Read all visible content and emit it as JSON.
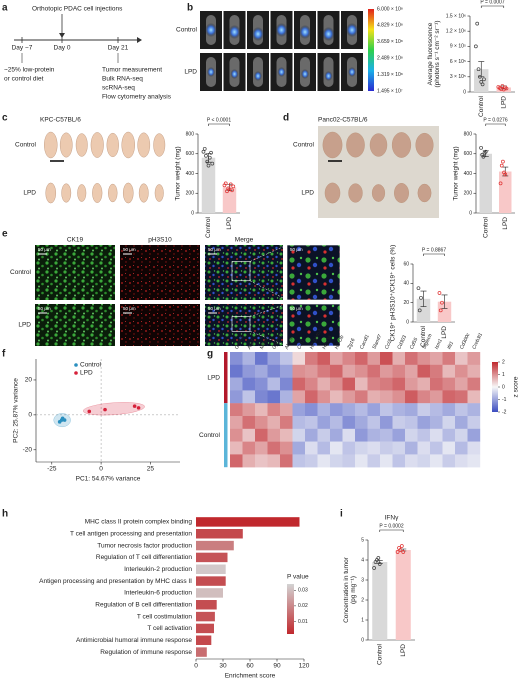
{
  "panel_letters": [
    "a",
    "b",
    "c",
    "d",
    "e",
    "f",
    "g",
    "h",
    "i"
  ],
  "diagram": {
    "injection": "Orthotopic PDAC cell injections",
    "days": [
      "Day −7",
      "Day 0",
      "Day 21"
    ],
    "diet": [
      "~25% low-protein",
      "or control diet"
    ],
    "readouts": [
      "Tumor measurement",
      "Bulk RNA-seq",
      "scRNA-seq",
      "Flow cytometry analysis"
    ]
  },
  "imaging": {
    "b": {
      "rows": [
        "Control",
        "LPD"
      ],
      "colorbar": [
        "6.000 × 10⁸",
        "4.829 × 10⁸",
        "3.659 × 10⁸",
        "2.489 × 10⁸",
        "1.319 × 10⁸",
        "1.495 × 10⁷"
      ]
    },
    "c": {
      "title": "KPC-C57BL/6",
      "rows": [
        "Control",
        "LPD"
      ]
    },
    "d": {
      "title": "Panc02-C57BL/6",
      "rows": [
        "Control",
        "LPD"
      ]
    },
    "e": {
      "columns": [
        "CK19",
        "pH3S10",
        "Merge"
      ],
      "rows": [
        "Control",
        "LPD"
      ],
      "scale": "50 μm"
    }
  },
  "chart_data": [
    {
      "type": "bar",
      "ylabel": [
        "Average fluorescence",
        "(photons s⁻¹ cm⁻² sr⁻¹)"
      ],
      "categories": [
        "Control",
        "LPD"
      ],
      "values": [
        450000,
        90000
      ],
      "errors": [
        150000,
        30000
      ],
      "points": [
        [
          900000,
          1350000,
          450000,
          300000,
          200000,
          150000,
          250000
        ],
        [
          100000,
          80000,
          60000,
          120000,
          50000,
          90000,
          70000
        ]
      ],
      "colors": [
        "#d9d9d9",
        "#f8c8c8"
      ],
      "point_colors": [
        "#404040",
        "#e03030"
      ],
      "annotation": "P = 0.0007",
      "ylim": [
        0,
        1500000
      ],
      "yticks": [
        0,
        {
          "value": 300000,
          "label": "3 × 10⁵"
        },
        {
          "value": 600000,
          "label": "6 × 10⁵"
        },
        {
          "value": 900000,
          "label": "9 × 10⁵"
        },
        {
          "value": 1200000,
          "label": "1.2 × 10⁶"
        },
        {
          "value": 1500000,
          "label": "1.5 × 10⁶"
        }
      ]
    },
    {
      "type": "bar",
      "ylabel": "Tumor weight (mg)",
      "categories": [
        "Control",
        "LPD"
      ],
      "values": [
        560,
        260
      ],
      "errors": [
        45,
        30
      ],
      "points": [
        [
          620,
          650,
          580,
          520,
          480,
          560,
          610,
          500
        ],
        [
          280,
          300,
          220,
          250,
          240,
          290,
          230,
          270
        ]
      ],
      "colors": [
        "#d9d9d9",
        "#f8c8c8"
      ],
      "point_colors": [
        "#404040",
        "#e03030"
      ],
      "annotation": "P < 0.0001",
      "ylim": [
        0,
        800
      ],
      "yticks": [
        0,
        200,
        400,
        600,
        800
      ]
    },
    {
      "type": "bar",
      "ylabel": "Tumor weight (mg)",
      "categories": [
        "Control",
        "LPD"
      ],
      "values": [
        600,
        420
      ],
      "errors": [
        30,
        45
      ],
      "points": [
        [
          660,
          590,
          570,
          610,
          620
        ],
        [
          300,
          480,
          520,
          410,
          390
        ]
      ],
      "colors": [
        "#d9d9d9",
        "#f8c8c8"
      ],
      "point_colors": [
        "#404040",
        "#e03030"
      ],
      "annotation": "P = 0.0276",
      "ylim": [
        0,
        800
      ],
      "yticks": [
        0,
        200,
        400,
        600,
        800
      ]
    },
    {
      "type": "bar",
      "ylabel": "CK19⁺ pH3S10⁺/CK19⁺ cells (%)",
      "categories": [
        "Control",
        "LPD"
      ],
      "values": [
        24,
        21
      ],
      "errors": [
        8,
        7
      ],
      "points": [
        [
          35,
          12,
          25
        ],
        [
          30,
          12,
          20
        ]
      ],
      "colors": [
        "#d9d9d9",
        "#f8c8c8"
      ],
      "point_colors": [
        "#404040",
        "#e03030"
      ],
      "annotation": "P = 0.8867",
      "ylim": [
        0,
        60
      ],
      "yticks": [
        0,
        20,
        40,
        60
      ]
    },
    {
      "type": "scatter",
      "xlabel": "PC1: 54.67% variance",
      "ylabel": "PC2: 25.87% variance",
      "series": [
        {
          "name": "Control",
          "color": "#2a8fbf",
          "x": [
            -20,
            -19.5,
            -21,
            -18.5
          ],
          "y": [
            -3,
            -2,
            -4,
            -3
          ]
        },
        {
          "name": "LPD",
          "color": "#d6213a",
          "x": [
            -6,
            2,
            17,
            19
          ],
          "y": [
            2,
            3,
            5,
            4
          ]
        }
      ],
      "xlim": [
        -33,
        40
      ],
      "ylim": [
        -27,
        32
      ],
      "xticks": [
        -25,
        0,
        25
      ],
      "yticks": [
        -20,
        0,
        20
      ]
    },
    {
      "type": "heatmap",
      "columns": [
        "Grem2",
        "Arg1",
        "Mmp2",
        "Gpnmb",
        "Alox5",
        "Clrl1",
        "H2-DMb2",
        "H2-Oa",
        "H2-Ob",
        "Zg16",
        "Cacdl1",
        "Slamf7",
        "Ccl2",
        "Cd303",
        "Cd55",
        "Siglech",
        "Ism1",
        "Ifit1",
        "Cd300c",
        "Creb3l1"
      ],
      "groups": [
        {
          "name": "LPD",
          "color": "#b2182b",
          "rows": [
            [
              -1.2,
              -0.8,
              -1.5,
              -1.0,
              -0.6,
              0.3,
              1.2,
              1.5,
              0.8,
              1.1,
              1.4,
              0.9,
              1.6,
              0.7,
              1.3,
              1.0,
              0.8,
              1.2,
              0.5,
              0.9
            ],
            [
              -1.5,
              -1.1,
              -0.9,
              -1.3,
              -1.0,
              1.0,
              0.9,
              1.2,
              1.4,
              0.8,
              1.0,
              1.3,
              0.9,
              1.1,
              0.8,
              1.5,
              1.2,
              0.6,
              1.0,
              0.7
            ],
            [
              -0.9,
              -1.4,
              -1.2,
              -0.7,
              -1.3,
              1.4,
              1.1,
              0.7,
              1.0,
              1.5,
              0.6,
              1.1,
              1.2,
              1.4,
              0.9,
              0.7,
              1.3,
              1.1,
              0.8,
              1.2
            ],
            [
              -1.1,
              -0.6,
              -1.3,
              -1.5,
              -0.8,
              0.8,
              1.4,
              1.0,
              0.6,
              0.9,
              1.2,
              0.7,
              0.8,
              1.0,
              1.5,
              1.1,
              0.9,
              1.4,
              1.3,
              0.6
            ]
          ]
        },
        {
          "name": "Control",
          "color": "#5bb5d9",
          "rows": [
            [
              1.2,
              0.9,
              0.6,
              1.1,
              0.8,
              -1.0,
              -1.2,
              -0.8,
              -1.1,
              -0.9,
              -0.7,
              -1.0,
              -0.6,
              -0.8,
              -0.9,
              -0.5,
              -0.7,
              -0.9,
              -0.6,
              -0.8
            ],
            [
              0.8,
              1.3,
              1.0,
              0.7,
              1.2,
              -0.7,
              -0.6,
              -1.0,
              -0.7,
              -1.2,
              -0.9,
              -0.6,
              -1.1,
              -0.5,
              -0.6,
              -1.0,
              -0.8,
              -0.4,
              -0.9,
              -0.5
            ],
            [
              1.0,
              0.5,
              1.4,
              0.9,
              0.6,
              -0.4,
              -0.9,
              -0.5,
              -0.9,
              -0.3,
              -1.1,
              -0.8,
              -0.7,
              -1.0,
              -0.4,
              -0.6,
              -0.3,
              -0.7,
              -0.4,
              -1.0
            ],
            [
              0.6,
              1.1,
              0.8,
              1.3,
              1.0,
              -0.9,
              -0.3,
              -0.7,
              -0.2,
              -0.6,
              -0.4,
              -0.3,
              -0.5,
              -0.4,
              -0.8,
              -0.3,
              -0.6,
              -0.2,
              -0.7,
              -0.3
            ],
            [
              1.4,
              0.7,
              0.5,
              0.6,
              1.3,
              -0.6,
              -0.5,
              -0.2,
              -0.4,
              -0.5,
              -0.2,
              -0.5,
              -0.2,
              -0.6,
              -0.3,
              -0.4,
              -0.2,
              -0.5,
              -0.3,
              -0.2
            ]
          ]
        }
      ],
      "zlim": [
        -2,
        2
      ],
      "zticks": [
        2,
        1,
        0,
        -1,
        -2
      ],
      "zlabel": "z score",
      "z_colors": [
        "#3b4cc0",
        "#f7f7f7",
        "#c0282d"
      ]
    },
    {
      "type": "hbar",
      "xlabel": "Enrichment score",
      "categories": [
        "MHC class II protein complex binding",
        "T cell antigen processing and presentation",
        "Tumor necrosis factor production",
        "Regulation of T cell differentiation",
        "Interleukin-2 production",
        "Antigen processing and presentation by MHC class II",
        "Interleukin-6 production",
        "Regulation of B cell differentiation",
        "T cell costimulation",
        "T cell activation",
        "Antimicrobial humoral immune response",
        "Regulation of immune response"
      ],
      "values": [
        115,
        52,
        42,
        35,
        33,
        33,
        30,
        23,
        21,
        20,
        17,
        12
      ],
      "p_values": [
        0.002,
        0.008,
        0.018,
        0.01,
        0.032,
        0.009,
        0.03,
        0.009,
        0.01,
        0.009,
        0.008,
        0.015
      ],
      "p_label": "P value",
      "p_lim": [
        0.002,
        0.034
      ],
      "p_ticks": [
        0.03,
        0.02,
        0.01
      ],
      "p_colors": [
        "#c0282d",
        "#d3d3d3"
      ],
      "xlim": [
        0,
        120
      ],
      "xticks": [
        0,
        30,
        60,
        90,
        120
      ]
    },
    {
      "type": "bar",
      "title": "IFNγ",
      "ylabel": [
        "Concentration in tumor",
        "(pg mg⁻¹)"
      ],
      "categories": [
        "Control",
        "LPD"
      ],
      "values": [
        3.9,
        4.5
      ],
      "errors": [
        0.08,
        0.05
      ],
      "points": [
        [
          3.6,
          3.9,
          4.0,
          4.1,
          3.8
        ],
        [
          4.4,
          4.6,
          4.5,
          4.7,
          4.4
        ]
      ],
      "colors": [
        "#d9d9d9",
        "#f8c8c8"
      ],
      "point_colors": [
        "#404040",
        "#e03030"
      ],
      "annotation": "P = 0.0002",
      "ylim": [
        0,
        5
      ],
      "yticks": [
        0,
        1,
        2,
        3,
        4,
        5
      ]
    }
  ]
}
